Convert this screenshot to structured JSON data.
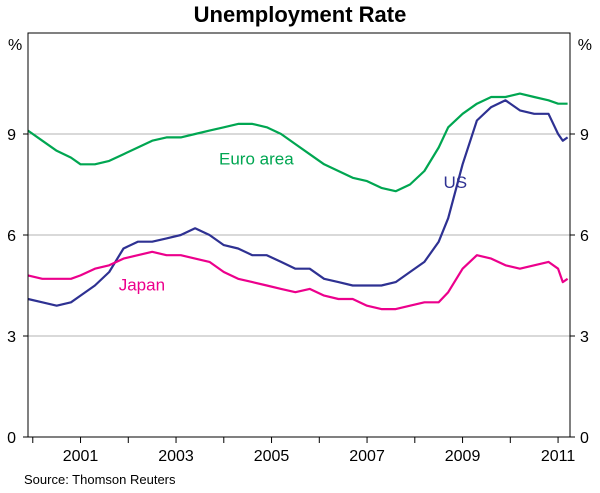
{
  "chart_data": {
    "type": "line",
    "title": "Unemployment Rate",
    "y_unit_left": "%",
    "y_unit_right": "%",
    "source": "Source: Thomson Reuters",
    "xlim": [
      1999.9,
      2011.25
    ],
    "ylim": [
      0,
      12
    ],
    "y_ticks": [
      0,
      3,
      6,
      9
    ],
    "x_tick_labels": [
      "2001",
      "2003",
      "2005",
      "2007",
      "2009",
      "2011"
    ],
    "grid": true,
    "colors": {
      "Euro area": "#00a651",
      "US": "#2e3192",
      "Japan": "#ec008c"
    },
    "series": [
      {
        "name": "Euro area",
        "x": [
          1999.9,
          2000.2,
          2000.5,
          2000.8,
          2001.0,
          2001.3,
          2001.6,
          2001.9,
          2002.2,
          2002.5,
          2002.8,
          2003.1,
          2003.4,
          2003.7,
          2004.0,
          2004.3,
          2004.6,
          2004.9,
          2005.2,
          2005.5,
          2005.8,
          2006.1,
          2006.4,
          2006.7,
          2007.0,
          2007.3,
          2007.6,
          2007.9,
          2008.2,
          2008.5,
          2008.7,
          2009.0,
          2009.3,
          2009.6,
          2009.9,
          2010.2,
          2010.5,
          2010.8,
          2011.0,
          2011.2
        ],
        "y": [
          9.1,
          8.8,
          8.5,
          8.3,
          8.1,
          8.1,
          8.2,
          8.4,
          8.6,
          8.8,
          8.9,
          8.9,
          9.0,
          9.1,
          9.2,
          9.3,
          9.3,
          9.2,
          9.0,
          8.7,
          8.4,
          8.1,
          7.9,
          7.7,
          7.6,
          7.4,
          7.3,
          7.5,
          7.9,
          8.6,
          9.2,
          9.6,
          9.9,
          10.1,
          10.1,
          10.2,
          10.1,
          10.0,
          9.9,
          9.9
        ]
      },
      {
        "name": "US",
        "x": [
          1999.9,
          2000.2,
          2000.5,
          2000.8,
          2001.0,
          2001.3,
          2001.6,
          2001.9,
          2002.2,
          2002.5,
          2002.8,
          2003.1,
          2003.4,
          2003.7,
          2004.0,
          2004.3,
          2004.6,
          2004.9,
          2005.2,
          2005.5,
          2005.8,
          2006.1,
          2006.4,
          2006.7,
          2007.0,
          2007.3,
          2007.6,
          2007.9,
          2008.2,
          2008.5,
          2008.7,
          2009.0,
          2009.3,
          2009.6,
          2009.9,
          2010.2,
          2010.5,
          2010.8,
          2011.0,
          2011.1,
          2011.2
        ],
        "y": [
          4.1,
          4.0,
          3.9,
          4.0,
          4.2,
          4.5,
          4.9,
          5.6,
          5.8,
          5.8,
          5.9,
          6.0,
          6.2,
          6.0,
          5.7,
          5.6,
          5.4,
          5.4,
          5.2,
          5.0,
          5.0,
          4.7,
          4.6,
          4.5,
          4.5,
          4.5,
          4.6,
          4.9,
          5.2,
          5.8,
          6.5,
          8.1,
          9.4,
          9.8,
          10.0,
          9.7,
          9.6,
          9.6,
          9.0,
          8.8,
          8.9
        ]
      },
      {
        "name": "Japan",
        "x": [
          1999.9,
          2000.2,
          2000.5,
          2000.8,
          2001.0,
          2001.3,
          2001.6,
          2001.9,
          2002.2,
          2002.5,
          2002.8,
          2003.1,
          2003.4,
          2003.7,
          2004.0,
          2004.3,
          2004.6,
          2004.9,
          2005.2,
          2005.5,
          2005.8,
          2006.1,
          2006.4,
          2006.7,
          2007.0,
          2007.3,
          2007.6,
          2007.9,
          2008.2,
          2008.5,
          2008.7,
          2009.0,
          2009.3,
          2009.6,
          2009.9,
          2010.2,
          2010.5,
          2010.8,
          2011.0,
          2011.1,
          2011.2
        ],
        "y": [
          4.8,
          4.7,
          4.7,
          4.7,
          4.8,
          5.0,
          5.1,
          5.3,
          5.4,
          5.5,
          5.4,
          5.4,
          5.3,
          5.2,
          4.9,
          4.7,
          4.6,
          4.5,
          4.4,
          4.3,
          4.4,
          4.2,
          4.1,
          4.1,
          3.9,
          3.8,
          3.8,
          3.9,
          4.0,
          4.0,
          4.3,
          5.0,
          5.4,
          5.3,
          5.1,
          5.0,
          5.1,
          5.2,
          5.0,
          4.6,
          4.7
        ]
      }
    ],
    "series_labels": {
      "Euro area": "Euro area",
      "US": "US",
      "Japan": "Japan"
    }
  }
}
